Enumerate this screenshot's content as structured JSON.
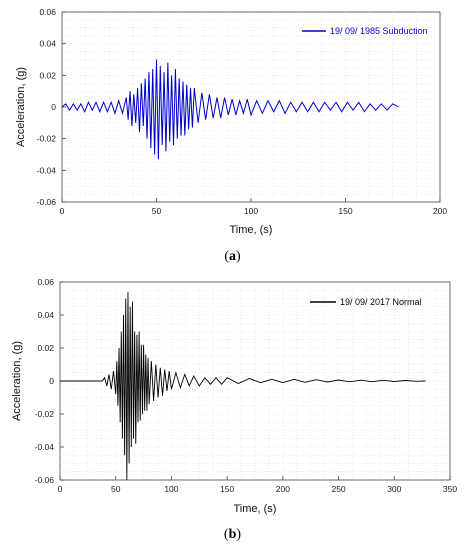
{
  "chart_data": [
    {
      "type": "line",
      "panel_label": "a",
      "xlabel": "Time, (s)",
      "ylabel": "Acceleration, (g)",
      "xlim": [
        0,
        200
      ],
      "ylim": [
        -0.06,
        0.06
      ],
      "xticks": [
        0,
        50,
        100,
        150,
        200
      ],
      "yticks": [
        -0.06,
        -0.04,
        -0.02,
        0,
        0.02,
        0.04,
        0.06
      ],
      "grid": true,
      "legend_position": "top-right",
      "series": [
        {
          "name": "19/ 09/ 1985 Subduction",
          "color": "#0000cc",
          "x": [
            0,
            2,
            4,
            6,
            8,
            10,
            12,
            14,
            16,
            18,
            20,
            22,
            24,
            26,
            28,
            30,
            32,
            34,
            35,
            36,
            37,
            38,
            39,
            40,
            41,
            42,
            43,
            44,
            45,
            46,
            47,
            48,
            49,
            50,
            51,
            52,
            53,
            54,
            55,
            56,
            57,
            58,
            59,
            60,
            61,
            62,
            63,
            64,
            65,
            66,
            67,
            68,
            69,
            70,
            72,
            74,
            76,
            78,
            80,
            82,
            84,
            86,
            88,
            90,
            92,
            94,
            96,
            98,
            100,
            103,
            106,
            109,
            112,
            115,
            118,
            121,
            124,
            127,
            130,
            133,
            136,
            139,
            142,
            145,
            148,
            151,
            154,
            157,
            160,
            163,
            166,
            169,
            172,
            175,
            178
          ],
          "y": [
            0,
            0.002,
            -0.002,
            0.002,
            -0.002,
            0.002,
            -0.003,
            0.003,
            -0.002,
            0.003,
            -0.003,
            0.003,
            -0.003,
            0.003,
            -0.004,
            0.004,
            -0.004,
            0.006,
            -0.008,
            0.01,
            -0.012,
            0.008,
            -0.01,
            0.012,
            -0.016,
            0.015,
            -0.012,
            0.018,
            -0.02,
            0.022,
            -0.026,
            0.024,
            -0.03,
            0.03,
            -0.033,
            0.026,
            -0.024,
            0.022,
            -0.028,
            0.028,
            -0.022,
            0.02,
            -0.024,
            0.024,
            -0.02,
            0.018,
            -0.018,
            0.016,
            -0.018,
            0.014,
            -0.014,
            0.012,
            -0.013,
            0.012,
            -0.01,
            0.009,
            -0.008,
            0.008,
            -0.007,
            0.006,
            -0.007,
            0.006,
            -0.005,
            0.005,
            -0.005,
            0.004,
            -0.004,
            0.005,
            -0.005,
            0.004,
            -0.004,
            0.004,
            -0.003,
            0.004,
            -0.004,
            0.003,
            -0.003,
            0.003,
            -0.003,
            0.003,
            -0.003,
            0.003,
            -0.002,
            0.003,
            -0.003,
            0.003,
            -0.002,
            0.003,
            -0.003,
            0.002,
            -0.002,
            0.002,
            -0.002,
            0.002,
            0
          ]
        }
      ]
    },
    {
      "type": "line",
      "panel_label": "b",
      "xlabel": "Time, (s)",
      "ylabel": "Acceleration, (g)",
      "xlim": [
        0,
        350
      ],
      "ylim": [
        -0.06,
        0.06
      ],
      "xticks": [
        0,
        50,
        100,
        150,
        200,
        250,
        300,
        350
      ],
      "yticks": [
        -0.06,
        -0.04,
        -0.02,
        0,
        0.02,
        0.04,
        0.06
      ],
      "grid": true,
      "legend_position": "top-right",
      "series": [
        {
          "name": "19/ 09/ 2017 Normal",
          "color": "#000000",
          "x": [
            0,
            10,
            20,
            30,
            38,
            40,
            42,
            44,
            46,
            48,
            50,
            51,
            52,
            53,
            54,
            55,
            56,
            57,
            58,
            59,
            60,
            61,
            62,
            63,
            64,
            65,
            66,
            67,
            68,
            69,
            70,
            71,
            72,
            73,
            74,
            75,
            76,
            77,
            78,
            79,
            80,
            82,
            84,
            86,
            88,
            90,
            92,
            94,
            96,
            98,
            100,
            104,
            108,
            112,
            116,
            120,
            125,
            130,
            135,
            140,
            145,
            150,
            160,
            170,
            180,
            190,
            200,
            210,
            220,
            230,
            240,
            250,
            260,
            270,
            280,
            290,
            300,
            310,
            320,
            328
          ],
          "y": [
            0,
            0,
            0,
            0,
            0,
            0.002,
            -0.003,
            0.004,
            -0.005,
            0.006,
            -0.008,
            0.012,
            -0.015,
            0.02,
            -0.025,
            0.03,
            -0.035,
            0.04,
            -0.045,
            0.05,
            -0.06,
            0.054,
            -0.05,
            0.045,
            -0.04,
            0.048,
            -0.035,
            0.03,
            -0.038,
            0.028,
            -0.025,
            0.03,
            -0.024,
            0.022,
            -0.02,
            0.022,
            -0.018,
            0.016,
            -0.018,
            0.014,
            -0.014,
            0.012,
            -0.012,
            0.01,
            -0.01,
            0.008,
            -0.009,
            0.007,
            -0.006,
            0.006,
            -0.005,
            0.005,
            -0.004,
            0.004,
            -0.003,
            0.003,
            -0.003,
            0.002,
            -0.002,
            0.002,
            -0.002,
            0.002,
            -0.0015,
            0.0015,
            -0.001,
            0.001,
            -0.001,
            0.001,
            -0.0008,
            0.0008,
            -0.0006,
            0.0006,
            -0.0005,
            0.0005,
            -0.0004,
            0.0004,
            -0.0003,
            0.0003,
            -0.0002,
            0
          ]
        }
      ]
    }
  ]
}
